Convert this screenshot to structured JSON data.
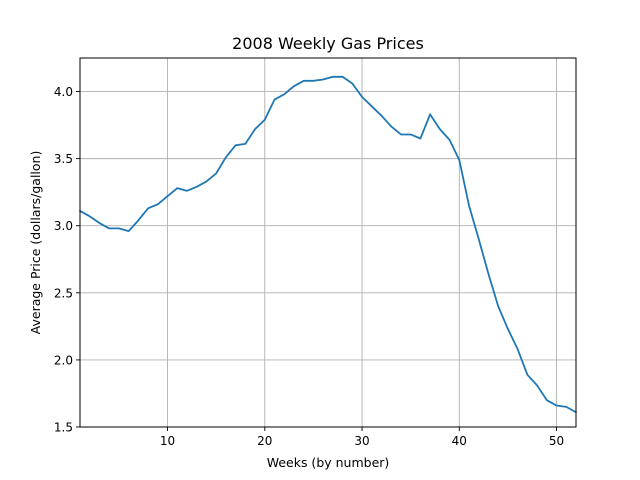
{
  "chart_data": {
    "type": "line",
    "title": "2008 Weekly Gas Prices",
    "xlabel": "Weeks (by number)",
    "ylabel": "Average Price (dollars/gallon)",
    "xlim": [
      1,
      52
    ],
    "ylim": [
      1.5,
      4.25
    ],
    "xticks": [
      10,
      20,
      30,
      40,
      50
    ],
    "yticks": [
      1.5,
      2.0,
      2.5,
      3.0,
      3.5,
      4.0
    ],
    "ytick_labels": [
      "1.5",
      "2.0",
      "2.5",
      "3.0",
      "3.5",
      "4.0"
    ],
    "grid": true,
    "line_color": "#1f77b4",
    "x": [
      1,
      2,
      3,
      4,
      5,
      6,
      7,
      8,
      9,
      10,
      11,
      12,
      13,
      14,
      15,
      16,
      17,
      18,
      19,
      20,
      21,
      22,
      23,
      24,
      25,
      26,
      27,
      28,
      29,
      30,
      31,
      32,
      33,
      34,
      35,
      36,
      37,
      38,
      39,
      40,
      41,
      42,
      43,
      44,
      45,
      46,
      47,
      48,
      49,
      50,
      51,
      52
    ],
    "series": [
      {
        "values": [
          3.11,
          3.07,
          3.02,
          2.98,
          2.98,
          2.96,
          3.04,
          3.13,
          3.16,
          3.22,
          3.28,
          3.26,
          3.29,
          3.33,
          3.39,
          3.51,
          3.6,
          3.61,
          3.72,
          3.79,
          3.94,
          3.98,
          4.04,
          4.08,
          4.08,
          4.09,
          4.11,
          4.11,
          4.06,
          3.96,
          3.89,
          3.82,
          3.74,
          3.68,
          3.68,
          3.65,
          3.83,
          3.72,
          3.64,
          3.49,
          3.15,
          2.9,
          2.64,
          2.4,
          2.23,
          2.08,
          1.89,
          1.81,
          1.7,
          1.66,
          1.65,
          1.61
        ]
      }
    ]
  }
}
